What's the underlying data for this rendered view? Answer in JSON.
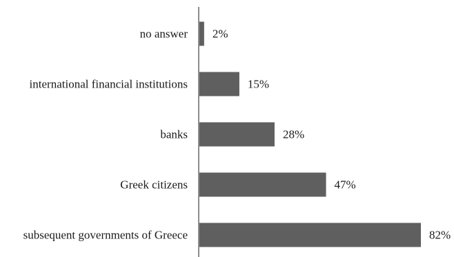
{
  "chart_data": {
    "type": "bar",
    "orientation": "horizontal",
    "categories": [
      "no answer",
      "international financial institutions",
      "banks",
      "Greek citizens",
      "subsequent governments of Greece"
    ],
    "values": [
      2,
      15,
      28,
      47,
      82
    ],
    "value_labels": [
      "2%",
      "15%",
      "28%",
      "47%",
      "82%"
    ],
    "unit": "%",
    "xlim": [
      0,
      82
    ],
    "grid": false,
    "legend": "none",
    "bar_color": "#5f5f5f",
    "axis_color": "#8c8c8c"
  }
}
